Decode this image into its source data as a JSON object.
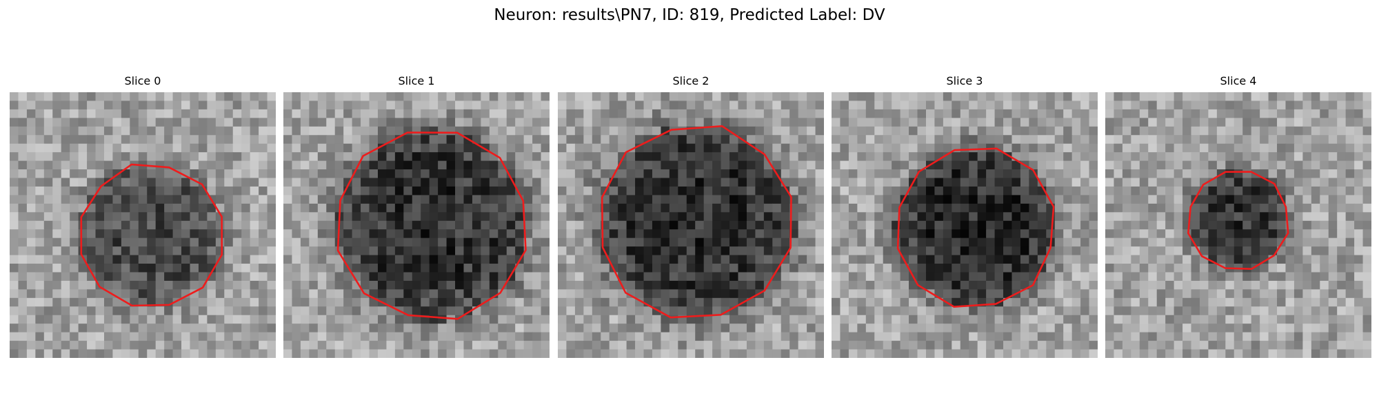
{
  "figure": {
    "title": "Neuron: results\\PN7, ID: 819, Predicted Label: DV"
  },
  "colors": {
    "contour": "#ee1c1c",
    "background": "#ffffff",
    "image_palette": "grayscale"
  },
  "slices": [
    {
      "title": "Slice 0",
      "contour_radius_fraction": 0.27,
      "contour_center_fraction": [
        0.53,
        0.54
      ],
      "interior_darkness": 0.35
    },
    {
      "title": "Slice 1",
      "contour_radius_fraction": 0.36,
      "contour_center_fraction": [
        0.56,
        0.5
      ],
      "interior_darkness": 0.45
    },
    {
      "title": "Slice 2",
      "contour_radius_fraction": 0.37,
      "contour_center_fraction": [
        0.52,
        0.49
      ],
      "interior_darkness": 0.45
    },
    {
      "title": "Slice 3",
      "contour_radius_fraction": 0.3,
      "contour_center_fraction": [
        0.54,
        0.51
      ],
      "interior_darkness": 0.48
    },
    {
      "title": "Slice 4",
      "contour_radius_fraction": 0.19,
      "contour_center_fraction": [
        0.5,
        0.48
      ],
      "interior_darkness": 0.45
    }
  ]
}
